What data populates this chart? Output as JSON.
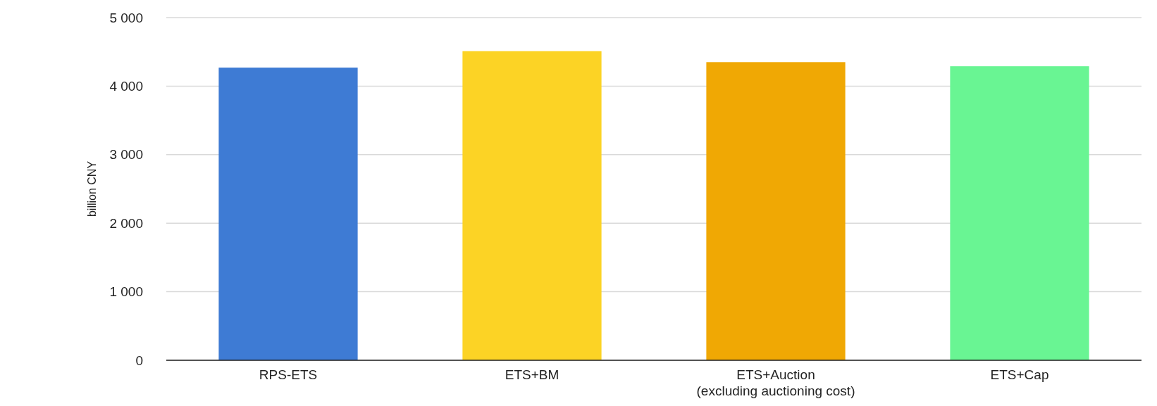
{
  "chart_data": {
    "type": "bar",
    "ylabel": "billion CNY",
    "categories": [
      "RPS-ETS",
      "ETS+BM",
      "ETS+Auction\n(excluding auctioning cost)",
      "ETS+Cap"
    ],
    "values": [
      4270,
      4510,
      4350,
      4290
    ],
    "colors": [
      "#3e7bd4",
      "#fcd325",
      "#f0a804",
      "#69f593"
    ],
    "ylim": [
      0,
      5000
    ],
    "yticks": [
      {
        "value": 0,
        "label": "0"
      },
      {
        "value": 1000,
        "label": "1 000"
      },
      {
        "value": 2000,
        "label": "2 000"
      },
      {
        "value": 3000,
        "label": "3 000"
      },
      {
        "value": 4000,
        "label": "4 000"
      },
      {
        "value": 5000,
        "label": "5 000"
      }
    ],
    "grid": "y"
  }
}
